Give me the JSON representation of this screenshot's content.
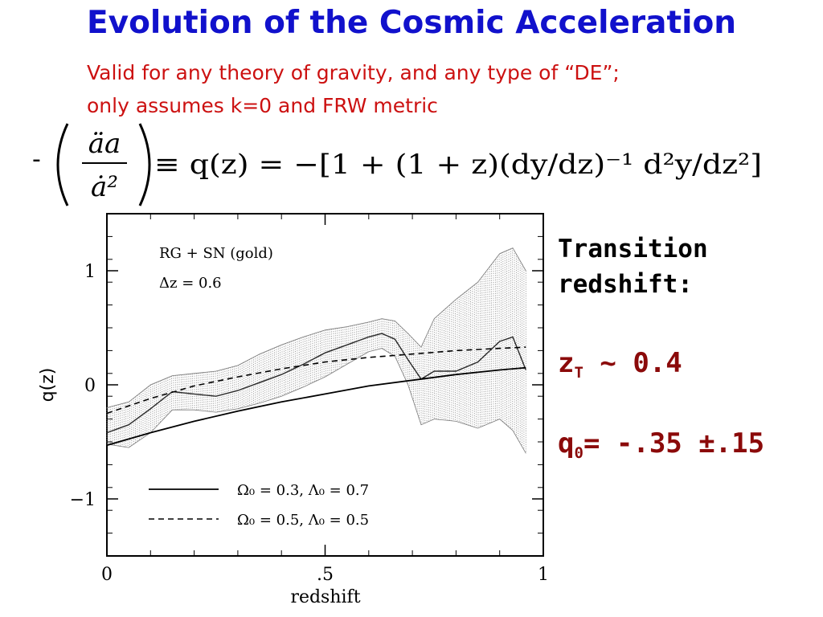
{
  "slide": {
    "title": "Evolution of the Cosmic Acceleration",
    "subtitle_line1": "Valid for any theory of gravity, and any type of “DE”;",
    "subtitle_line2": "only assumes k=0 and FRW metric",
    "equation": {
      "prefix": "-",
      "numerator": "äa",
      "denominator": "ȧ²",
      "rhs_text": "≡ q(z) = −[1 + (1 + z)(dy/dz)⁻¹ d²y/dz²]"
    },
    "side_text": {
      "transition_line1": "Transition",
      "transition_line2": "redshift:",
      "zt_symbol": "z",
      "zt_sub": "T",
      "zt_value": "~ 0.4",
      "q0_symbol": "q",
      "q0_sub": "0",
      "q0_value": "= -.35 ±.15"
    }
  },
  "chart_data": {
    "type": "line",
    "xlabel": "redshift",
    "ylabel": "q(z)",
    "xlim": [
      0,
      1
    ],
    "ylim": [
      -1.5,
      1.5
    ],
    "xticks": [
      {
        "value": 0,
        "label": "0"
      },
      {
        "value": 0.5,
        "label": ".5"
      },
      {
        "value": 1,
        "label": "1"
      }
    ],
    "yticks": [
      {
        "value": 1,
        "label": "1"
      },
      {
        "value": 0,
        "label": "0"
      },
      {
        "value": -1,
        "label": "−1"
      }
    ],
    "annotation_line1": "RG + SN (gold)",
    "annotation_line2": "Δz = 0.6",
    "legend": {
      "placement": "bottom-left",
      "entries": [
        {
          "style": "solid",
          "label": "Ω₀ = 0.3, Λ₀ = 0.7"
        },
        {
          "style": "dashed",
          "label": "Ω₀ = 0.5, Λ₀ = 0.5"
        }
      ]
    },
    "series": [
      {
        "style": "solid",
        "x": [
          0,
          0.1,
          0.2,
          0.3,
          0.4,
          0.5,
          0.6,
          0.7,
          0.8,
          0.9,
          0.96
        ],
        "y": [
          -0.53,
          -0.42,
          -0.32,
          -0.23,
          -0.15,
          -0.08,
          -0.01,
          0.04,
          0.09,
          0.13,
          0.15
        ]
      },
      {
        "style": "dashed",
        "x": [
          0,
          0.1,
          0.2,
          0.3,
          0.4,
          0.5,
          0.6,
          0.7,
          0.8,
          0.9,
          0.96
        ],
        "y": [
          -0.25,
          -0.12,
          -0.01,
          0.07,
          0.14,
          0.2,
          0.24,
          0.27,
          0.3,
          0.32,
          0.33
        ]
      },
      {
        "style": "reconstruction",
        "x": [
          0,
          0.05,
          0.1,
          0.15,
          0.2,
          0.25,
          0.3,
          0.35,
          0.4,
          0.45,
          0.5,
          0.55,
          0.6,
          0.63,
          0.66,
          0.69,
          0.72,
          0.75,
          0.8,
          0.85,
          0.9,
          0.93,
          0.96
        ],
        "y": [
          -0.42,
          -0.35,
          -0.21,
          -0.06,
          -0.08,
          -0.1,
          -0.05,
          0.02,
          0.09,
          0.18,
          0.28,
          0.35,
          0.42,
          0.45,
          0.4,
          0.22,
          0.05,
          0.12,
          0.12,
          0.2,
          0.38,
          0.42,
          0.13
        ],
        "upper": [
          -0.2,
          -0.15,
          0.0,
          0.08,
          0.1,
          0.12,
          0.17,
          0.27,
          0.35,
          0.42,
          0.48,
          0.51,
          0.55,
          0.58,
          0.56,
          0.45,
          0.33,
          0.58,
          0.75,
          0.9,
          1.15,
          1.2,
          1.0
        ],
        "lower": [
          -0.52,
          -0.55,
          -0.42,
          -0.22,
          -0.22,
          -0.24,
          -0.21,
          -0.16,
          -0.1,
          -0.02,
          0.07,
          0.18,
          0.29,
          0.32,
          0.25,
          0.0,
          -0.35,
          -0.3,
          -0.32,
          -0.38,
          -0.3,
          -0.4,
          -0.6
        ]
      }
    ]
  }
}
